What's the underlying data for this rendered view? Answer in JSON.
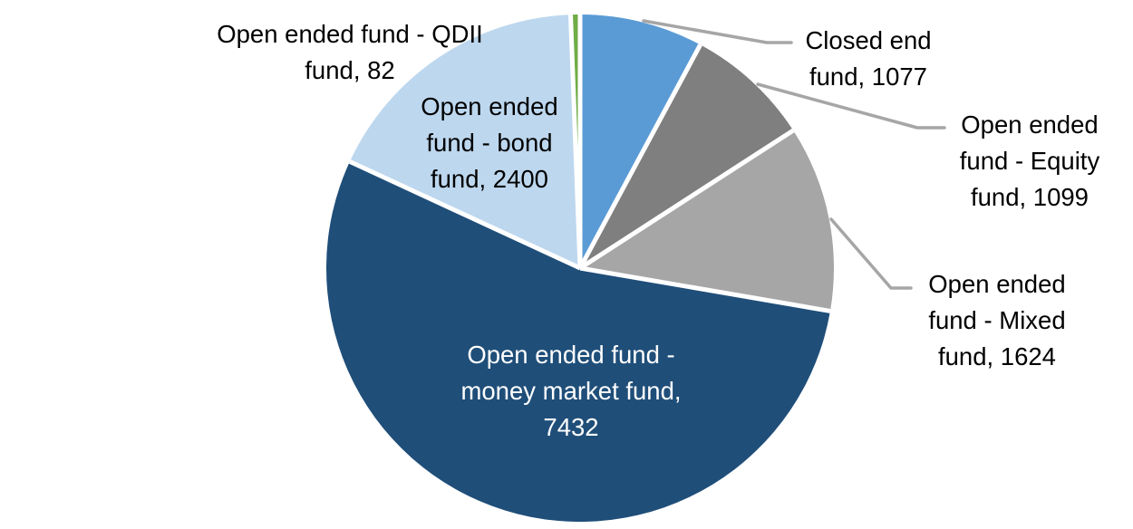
{
  "chart_data": {
    "type": "pie",
    "title": "",
    "legend": "none",
    "direction": "clockwise",
    "start_angle_deg": 0,
    "total": 13714,
    "label_format": "category, value",
    "slices": [
      {
        "name": "Closed end fund",
        "value": 1077,
        "color": "#5B9BD5",
        "label_placement": "outside-leader",
        "label_lines": [
          "Closed end",
          "fund, 1077"
        ]
      },
      {
        "name": "Open ended fund - Equity fund",
        "value": 1099,
        "color": "#7F7F7F",
        "label_placement": "outside-leader",
        "label_lines": [
          "Open ended",
          "fund - Equity",
          "fund, 1099"
        ]
      },
      {
        "name": "Open ended fund - Mixed fund",
        "value": 1624,
        "color": "#A6A6A6",
        "label_placement": "outside-leader",
        "label_lines": [
          "Open ended",
          "fund - Mixed",
          "fund, 1624"
        ]
      },
      {
        "name": "Open ended fund - money market fund",
        "value": 7432,
        "color": "#1F4E79",
        "label_placement": "inside",
        "label_lines": [
          "Open ended fund -",
          "money market fund,",
          "7432"
        ]
      },
      {
        "name": "Open ended fund - bond fund",
        "value": 2400,
        "color": "#BDD7EE",
        "label_placement": "outside",
        "label_lines": [
          "Open ended",
          "fund - bond",
          "fund, 2400"
        ]
      },
      {
        "name": "Open ended fund - QDII fund",
        "value": 82,
        "color": "#70AD47",
        "label_placement": "outside",
        "label_lines": [
          "Open ended fund - QDII",
          "fund, 82"
        ]
      }
    ],
    "colors": {
      "background": "#FFFFFF",
      "leader_line": "#A6A6A6",
      "outside_label_text": "#000000",
      "inside_label_text": "#FFFFFF",
      "slice_separator": "#FFFFFF"
    }
  }
}
